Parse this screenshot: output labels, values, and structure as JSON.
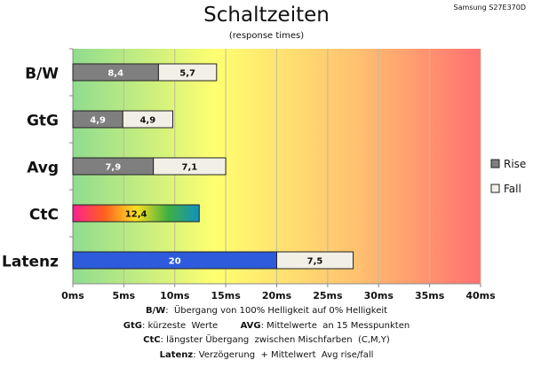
{
  "monitor": "Samsung S27E370D",
  "chart_data": {
    "type": "bar",
    "orientation": "horizontal",
    "stacked": true,
    "title": "Schaltzeiten",
    "subtitle": "(response times)",
    "categories": [
      "B/W",
      "GtG",
      "Avg",
      "CtC",
      "Latenz"
    ],
    "series": [
      {
        "name": "Rise",
        "values": [
          8.4,
          4.9,
          7.9,
          12.4,
          20
        ],
        "value_labels": [
          "8,4",
          "4,9",
          "7,9",
          "12,4",
          "20"
        ],
        "color": "#7f7f7f"
      },
      {
        "name": "Fall",
        "values": [
          5.7,
          4.9,
          7.1,
          null,
          7.5
        ],
        "value_labels": [
          "5,7",
          "4,9",
          "7,1",
          "",
          "7,5"
        ],
        "color": "#f2f0e6"
      }
    ],
    "xlim": [
      0,
      40
    ],
    "xticks": [
      0,
      5,
      10,
      15,
      20,
      25,
      30,
      35,
      40
    ],
    "xtick_labels": [
      "0ms",
      "5ms",
      "10ms",
      "15ms",
      "20ms",
      "25ms",
      "30ms",
      "35ms",
      "40ms"
    ],
    "legend_position": "right",
    "grid": true,
    "background_gradient": [
      "#8fdc8f",
      "#ffff70",
      "#ff7070"
    ],
    "bar_colors": {
      "ctc": "rainbow",
      "latenz": "#2d5bdc"
    }
  },
  "notes": [
    {
      "segments": [
        {
          "b": "B/W"
        },
        {
          "t": ":  Übergang von 100% Helligkeit auf 0% Helligkeit"
        }
      ]
    },
    {
      "segments": [
        {
          "b": "GtG"
        },
        {
          "t": ": kürzeste  Werte        "
        },
        {
          "b": "AVG"
        },
        {
          "t": ": Mittelwerte  an 15 Messpunkten"
        }
      ]
    },
    {
      "segments": [
        {
          "b": "CtC"
        },
        {
          "t": ": längster Übergang  zwischen Mischfarben  (C,M,Y)"
        }
      ]
    },
    {
      "segments": [
        {
          "b": "Latenz"
        },
        {
          "t": ": Verzögerung  + Mittelwert  Avg rise/fall"
        }
      ]
    }
  ]
}
